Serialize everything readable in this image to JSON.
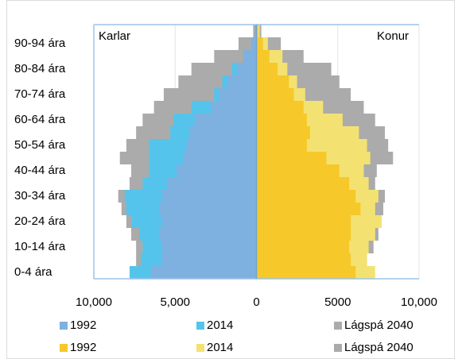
{
  "chart_data": {
    "type": "pyramid",
    "left_label": "Karlar",
    "right_label": "Konur",
    "categories": [
      "0-4 ára",
      null,
      "10-14 ára",
      null,
      "20-24 ára",
      null,
      "30-34 ára",
      null,
      "40-44 ára",
      null,
      "50-54 ára",
      null,
      "60-64 ára",
      null,
      "70-74 ára",
      null,
      "80-84 ára",
      null,
      "90-94 ára",
      null
    ],
    "xlim": [
      -10000,
      10000
    ],
    "xticks": [
      {
        "value": -10000,
        "label": "10,000"
      },
      {
        "value": -5000,
        "label": "5,000"
      },
      0,
      5000,
      {
        "value": 10000,
        "label": "10,000"
      }
    ],
    "grid": true,
    "series": [
      {
        "name": "1992",
        "color": "#7eb1df",
        "values": [
          -6500,
          -5800,
          -5800,
          -6000,
          -5800,
          -6000,
          -5800,
          -5500,
          -4900,
          -4500,
          -4300,
          -4100,
          -3800,
          -2800,
          -2300,
          -1800,
          -1200,
          -800,
          -300,
          -100
        ]
      },
      {
        "name": "2014",
        "color": "#55c4ec",
        "values": [
          -7800,
          -7100,
          -7000,
          -7200,
          -7700,
          -8000,
          -8100,
          -7000,
          -6600,
          -6600,
          -6600,
          -5300,
          -5100,
          -4000,
          -2600,
          -2100,
          -1500,
          -700,
          -300,
          -100
        ]
      },
      {
        "name": "Lágspá 2040",
        "color": "#ababab",
        "values": [
          -7300,
          -7400,
          -7400,
          -7700,
          -8000,
          -8300,
          -8500,
          -7800,
          -7700,
          -8400,
          -8000,
          -7400,
          -7000,
          -6300,
          -5700,
          -4800,
          -4000,
          -2600,
          -1100,
          -200
        ]
      },
      {
        "name": "1992",
        "color": "#f6c829",
        "values": [
          6100,
          5800,
          5700,
          5800,
          5800,
          6400,
          6100,
          5700,
          5100,
          4300,
          3100,
          3300,
          3100,
          2900,
          2300,
          2000,
          1300,
          800,
          400,
          100
        ]
      },
      {
        "name": "2014",
        "color": "#f3e271",
        "values": [
          7300,
          6800,
          6900,
          7300,
          7700,
          7300,
          7500,
          6900,
          6600,
          7000,
          6800,
          6300,
          5300,
          4100,
          3000,
          2500,
          1900,
          1600,
          700,
          200
        ]
      },
      {
        "name": "Lágspá 2040",
        "color": "#ababab",
        "values": [
          7000,
          6800,
          7200,
          7500,
          7300,
          7800,
          7900,
          7300,
          7400,
          8400,
          8100,
          7900,
          7300,
          6600,
          5800,
          5100,
          4600,
          2900,
          1500,
          300
        ]
      }
    ]
  }
}
